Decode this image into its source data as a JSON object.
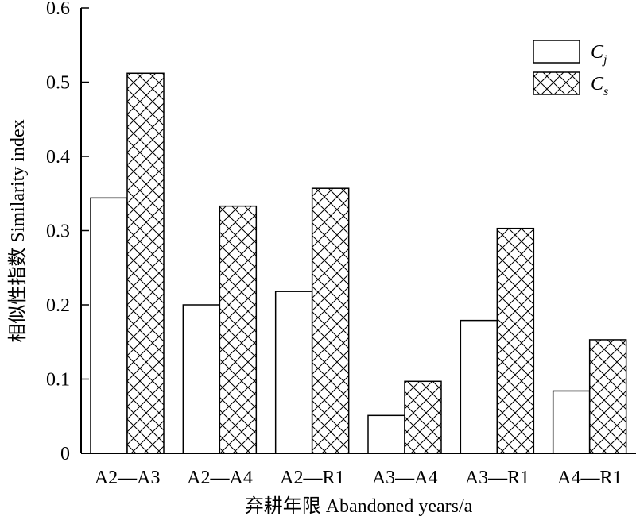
{
  "chart_data": {
    "type": "bar",
    "ylabel": "相似性指数 Similarity index",
    "xlabel": "弃耕年限 Abandoned years/a",
    "categories": [
      "A2—A3",
      "A2—A4",
      "A2—R1",
      "A3—A4",
      "A3—R1",
      "A4—R1"
    ],
    "ylim": [
      0,
      0.6
    ],
    "yticks": [
      "0",
      "0.1",
      "0.2",
      "0.3",
      "0.4",
      "0.5",
      "0.6"
    ],
    "series": [
      {
        "name": "Cj",
        "name_base": "C",
        "name_sub": "j",
        "fill": "plain",
        "values": [
          0.344,
          0.2,
          0.218,
          0.051,
          0.179,
          0.084
        ]
      },
      {
        "name": "Cs",
        "name_base": "C",
        "name_sub": "s",
        "fill": "crosshatch",
        "values": [
          0.512,
          0.333,
          0.357,
          0.097,
          0.303,
          0.153
        ]
      }
    ],
    "legend_position": "top-right",
    "grid": false
  }
}
